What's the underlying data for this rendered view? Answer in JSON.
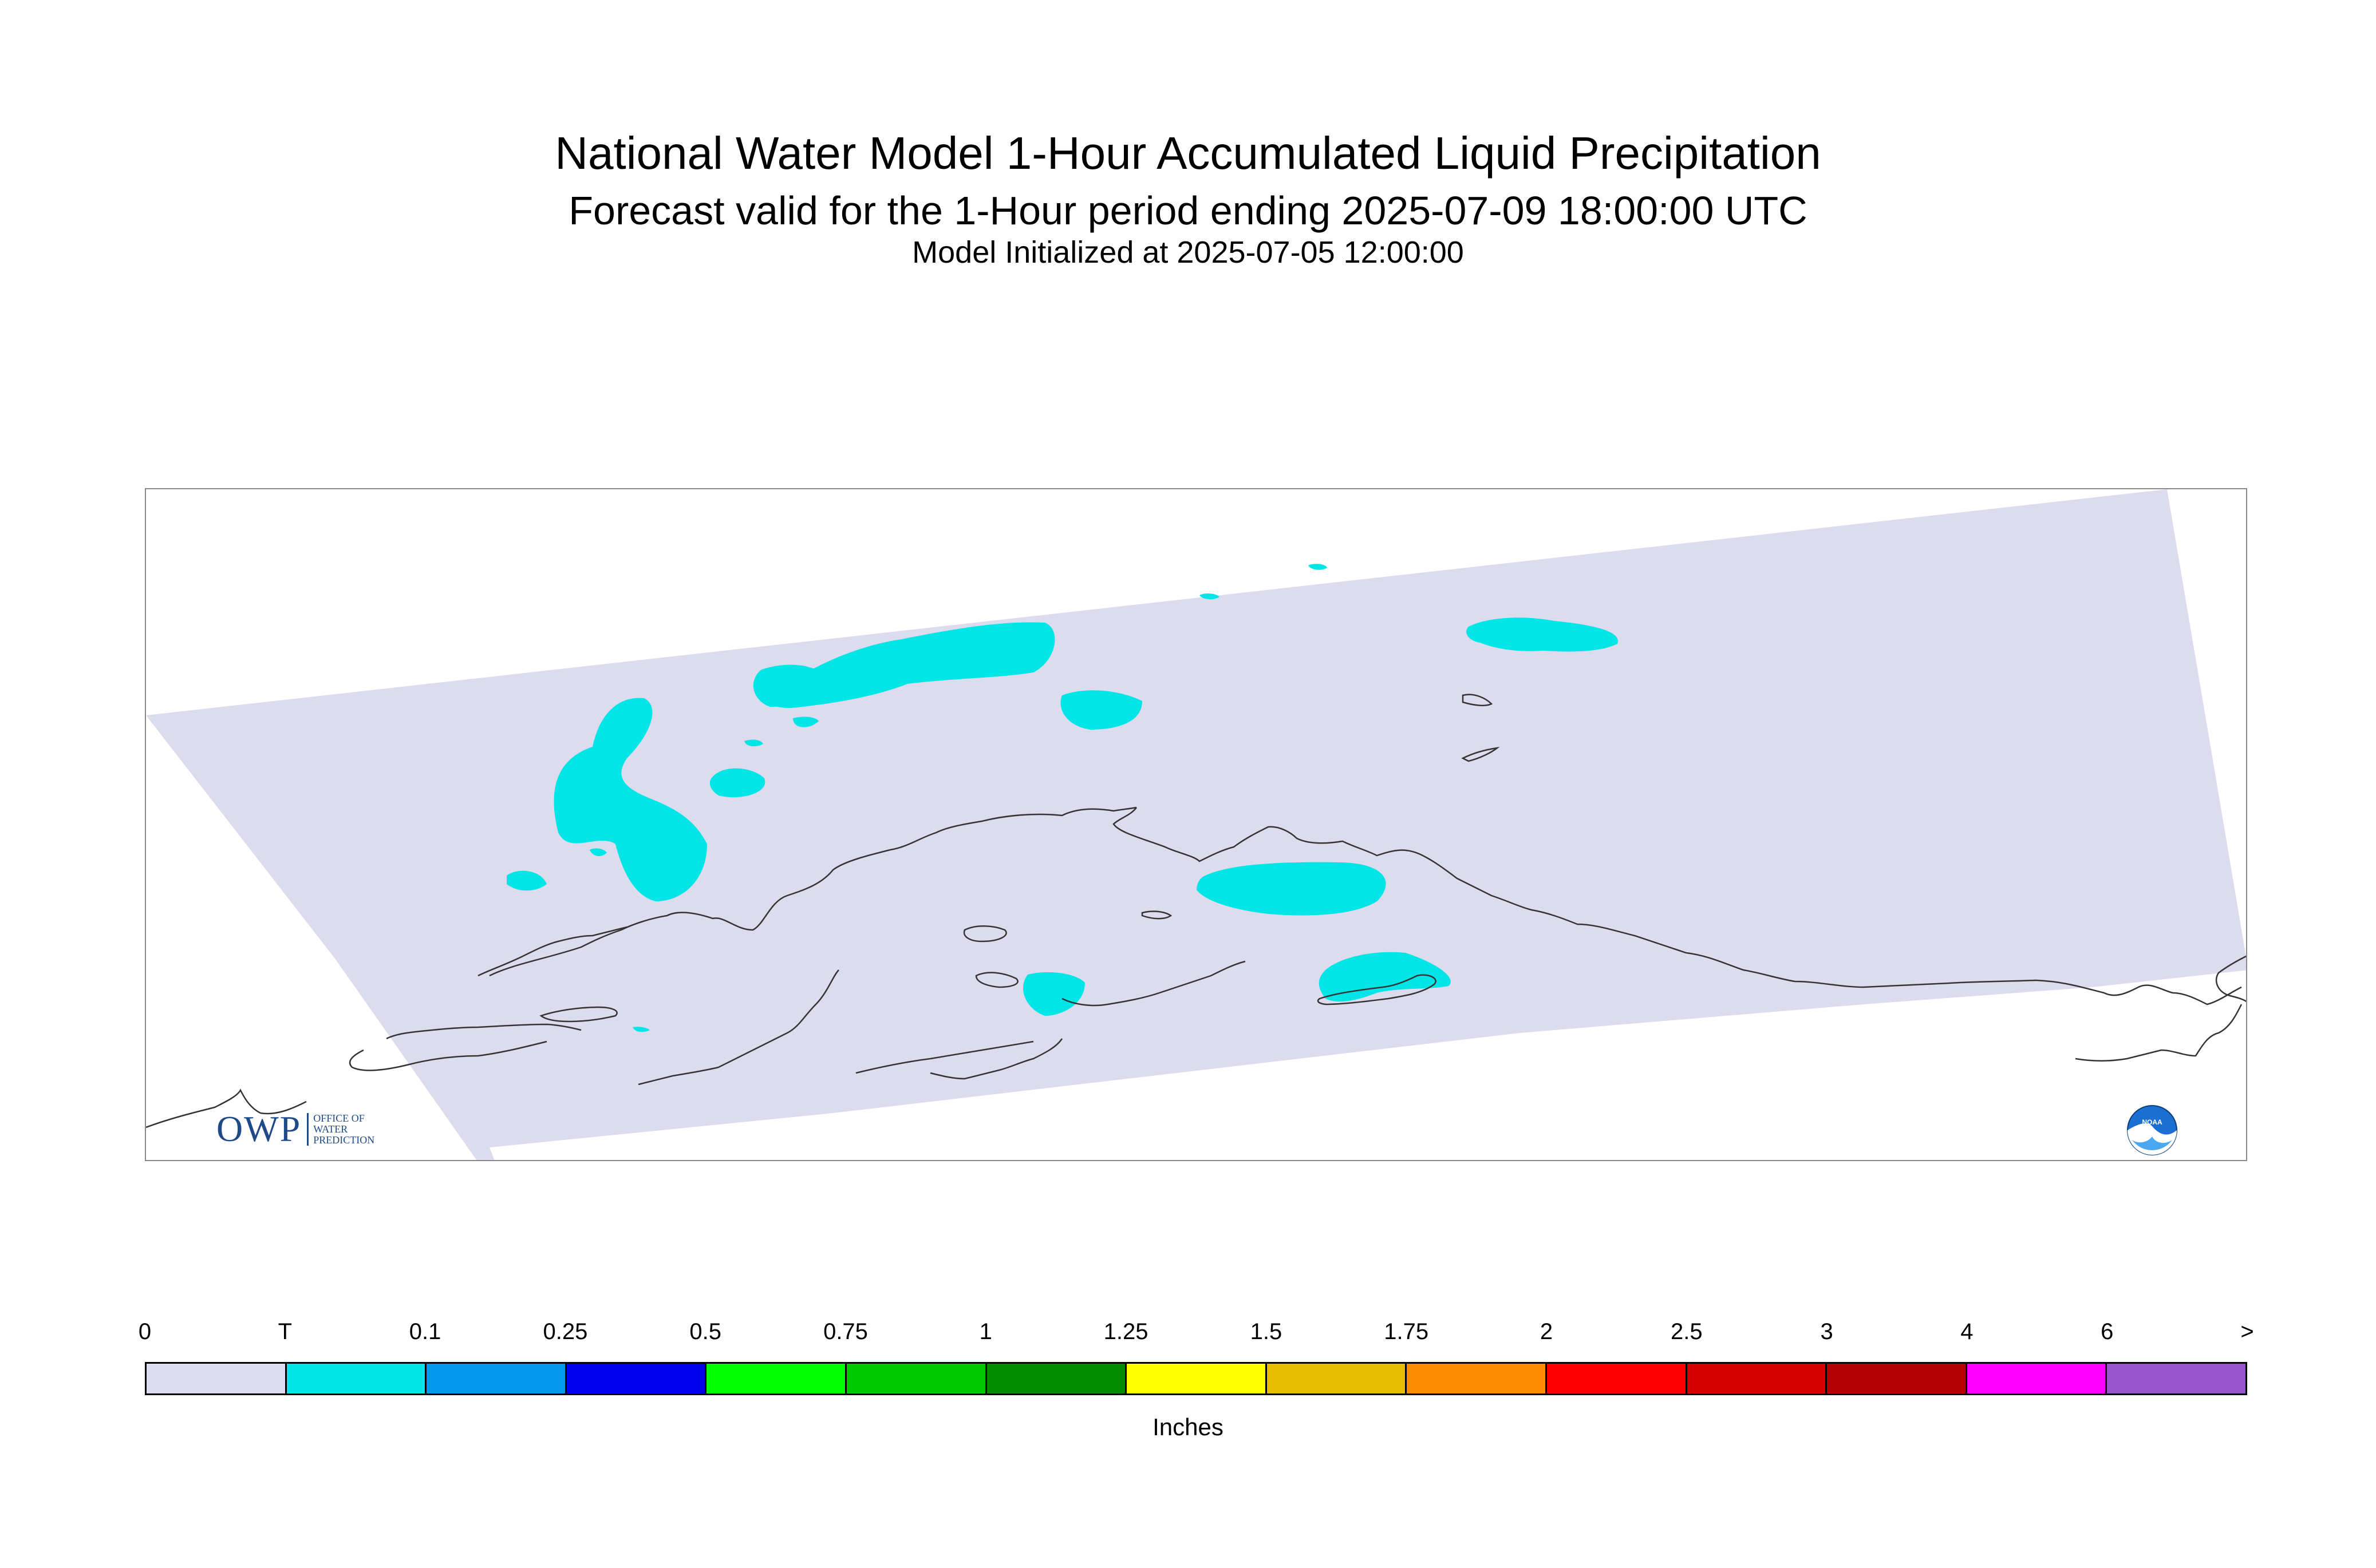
{
  "title": {
    "main": "National Water Model 1-Hour Accumulated Liquid Precipitation",
    "forecast": "Forecast valid for the 1-Hour period ending 2025-07-09 18:00:00 UTC",
    "init": "Model Initialized at 2025-07-05 12:00:00"
  },
  "map": {
    "domain_color": "#dcdcee",
    "precip_color": "#00e5e5",
    "coast_color": "#333333"
  },
  "legend": {
    "labels": [
      "0",
      "T",
      "0.1",
      "0.25",
      "0.5",
      "0.75",
      "1",
      "1.25",
      "1.5",
      "1.75",
      "2",
      "2.5",
      "3",
      "4",
      "6",
      ">"
    ],
    "colors": [
      "#dcdcee",
      "#00e5e5",
      "#0099ee",
      "#0000ee",
      "#00ff00",
      "#00c800",
      "#008c00",
      "#ffff00",
      "#e5bf00",
      "#ff8c00",
      "#ff0000",
      "#d70000",
      "#b40000",
      "#ff00ff",
      "#9955cc"
    ],
    "units": "Inches"
  },
  "logos": {
    "owp": "OWP",
    "owp_sub": [
      "OFFICE OF",
      "WATER",
      "PREDICTION"
    ],
    "noaa": "NOAA"
  }
}
